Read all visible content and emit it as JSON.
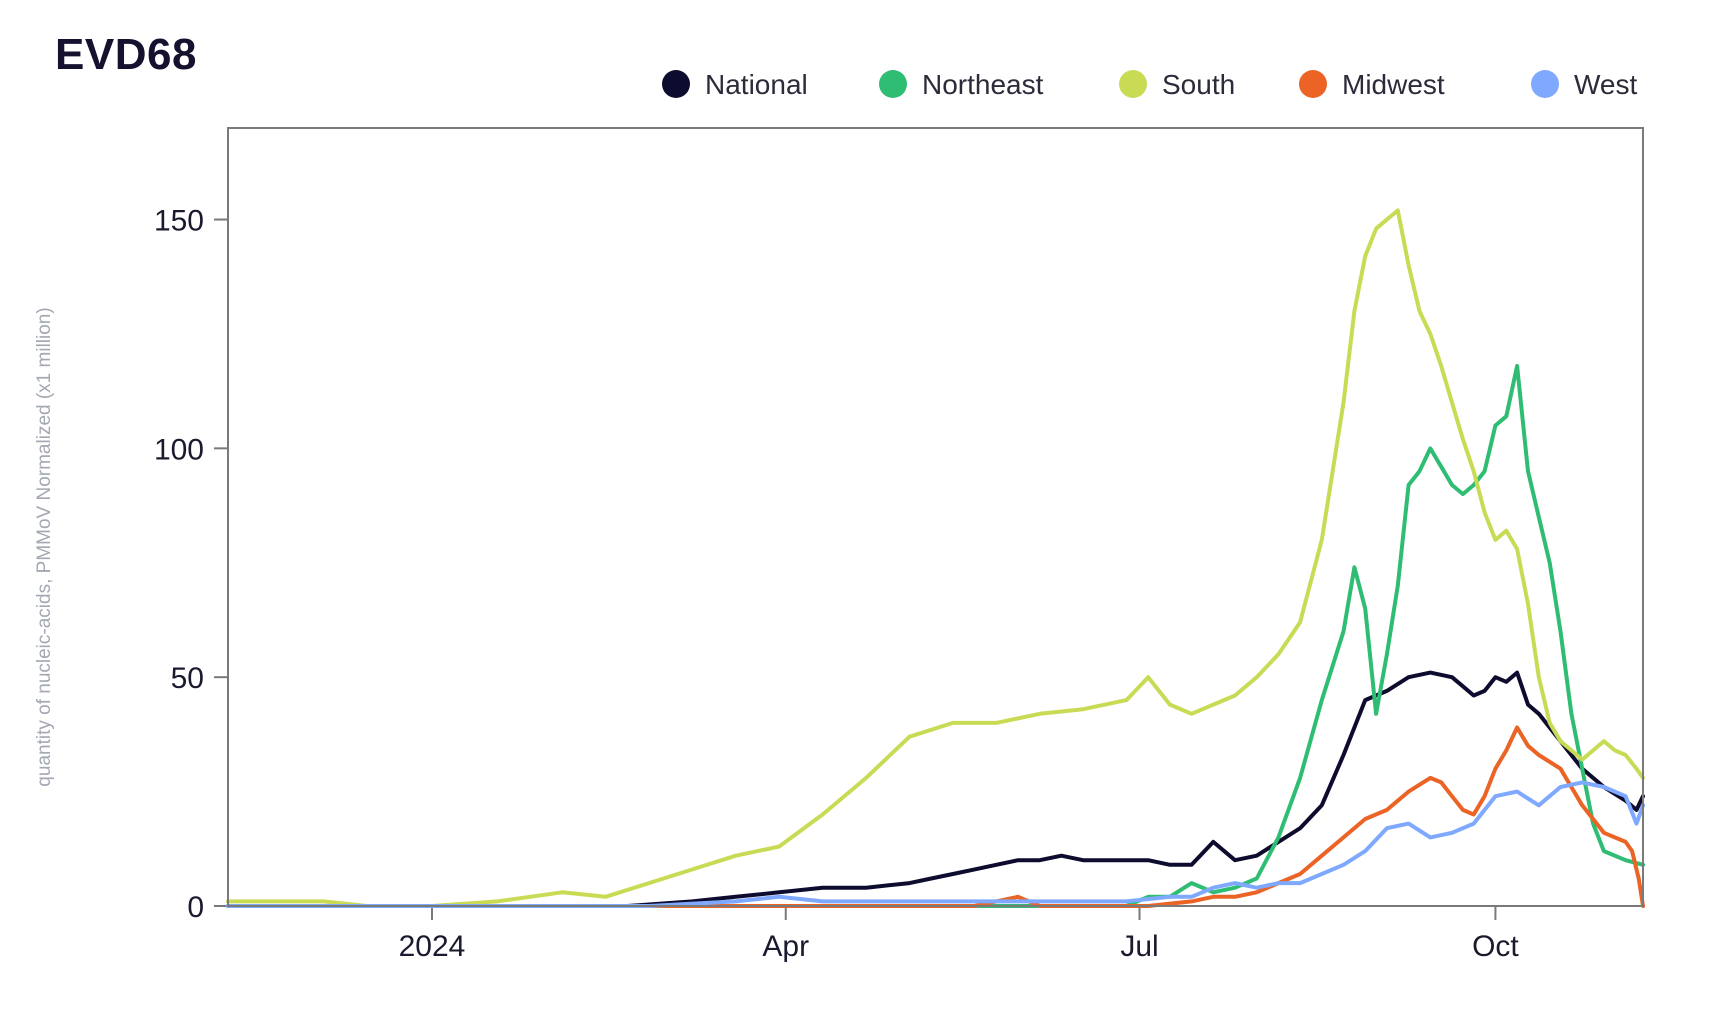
{
  "chart_data": {
    "type": "line",
    "title": "EVD68",
    "xlabel": "",
    "ylabel": "quantity of nucleic-acids, PMMoV Normalized (x1 million)",
    "ylim": [
      0,
      170
    ],
    "yticks": [
      0,
      50,
      100,
      150
    ],
    "x_unit": "weeks since 2024-01-01",
    "xlim": [
      -9.4,
      55.8
    ],
    "xticks": [
      {
        "x": 0,
        "label": "2024"
      },
      {
        "x": 16.3,
        "label": "Apr"
      },
      {
        "x": 32.6,
        "label": "Jul"
      },
      {
        "x": 49.0,
        "label": "Oct"
      }
    ],
    "legend_position": "top-right",
    "series": [
      {
        "name": "National",
        "color": "#0d0b2e",
        "x": [
          9,
          12,
          14,
          16,
          18,
          20,
          22,
          23,
          24,
          25,
          26,
          27,
          28,
          29,
          30,
          31,
          32,
          33,
          34,
          35,
          36,
          37,
          38,
          39,
          40,
          41,
          42,
          43,
          44,
          45,
          46,
          47,
          47.5,
          48,
          48.5,
          49,
          49.5,
          50,
          50.5,
          51,
          52,
          53,
          54,
          55,
          55.5,
          55.8
        ],
        "values": [
          0,
          1,
          2,
          3,
          4,
          4,
          5,
          6,
          7,
          8,
          9,
          10,
          10,
          11,
          10,
          10,
          10,
          10,
          9,
          9,
          14,
          10,
          11,
          14,
          17,
          22,
          33,
          45,
          47,
          50,
          51,
          50,
          48,
          46,
          47,
          50,
          49,
          51,
          44,
          42,
          36,
          30,
          26,
          23,
          21,
          24
        ]
      },
      {
        "name": "Northeast",
        "color": "#2ebd73",
        "x": [
          -9.4,
          20,
          28,
          32,
          33,
          34,
          35,
          36,
          37,
          38,
          39,
          40,
          41,
          42,
          42.5,
          43,
          43.5,
          44,
          44.5,
          45,
          45.5,
          46,
          46.5,
          47,
          47.5,
          48,
          48.5,
          49,
          49.5,
          50,
          50.5,
          51,
          51.5,
          52,
          52.5,
          53,
          53.5,
          54,
          55,
          55.8
        ],
        "values": [
          0,
          0,
          0,
          0,
          2,
          2,
          5,
          3,
          4,
          6,
          15,
          28,
          45,
          60,
          74,
          65,
          42,
          55,
          70,
          92,
          95,
          100,
          96,
          92,
          90,
          92,
          95,
          105,
          107,
          118,
          95,
          85,
          75,
          60,
          42,
          30,
          18,
          12,
          10,
          9
        ]
      },
      {
        "name": "South",
        "color": "#c9db55",
        "x": [
          -9.4,
          -7,
          -5,
          -3,
          0,
          3,
          6,
          8,
          10,
          12,
          14,
          16,
          18,
          20,
          22,
          24,
          26,
          28,
          30,
          32,
          33,
          34,
          35,
          36,
          37,
          38,
          39,
          40,
          41,
          42,
          42.5,
          43,
          43.5,
          44,
          44.5,
          45,
          45.5,
          46,
          46.5,
          47,
          47.5,
          48,
          48.5,
          49,
          49.5,
          50,
          50.5,
          51,
          51.5,
          52,
          52.5,
          53,
          53.5,
          54,
          54.5,
          55,
          55.5,
          55.8
        ],
        "values": [
          1,
          1,
          1,
          0,
          0,
          1,
          3,
          2,
          5,
          8,
          11,
          13,
          20,
          28,
          37,
          40,
          40,
          42,
          43,
          45,
          50,
          44,
          42,
          44,
          46,
          50,
          55,
          62,
          80,
          110,
          130,
          142,
          148,
          150,
          152,
          140,
          130,
          125,
          118,
          110,
          102,
          95,
          86,
          80,
          82,
          78,
          66,
          50,
          40,
          36,
          34,
          32,
          34,
          36,
          34,
          33,
          30,
          28
        ]
      },
      {
        "name": "Midwest",
        "color": "#eb6325",
        "x": [
          -9.4,
          24,
          25,
          26,
          27,
          28,
          30,
          33,
          35,
          36,
          37,
          38,
          39,
          40,
          41,
          42,
          43,
          44,
          45,
          46,
          46.5,
          47,
          47.5,
          48,
          48.5,
          49,
          49.5,
          50,
          50.5,
          51,
          52,
          53,
          54,
          55,
          55.3,
          55.6,
          55.8
        ],
        "values": [
          0,
          0,
          0,
          1,
          2,
          0,
          0,
          0,
          1,
          2,
          2,
          3,
          5,
          7,
          11,
          15,
          19,
          21,
          25,
          28,
          27,
          24,
          21,
          20,
          24,
          30,
          34,
          39,
          35,
          33,
          30,
          22,
          16,
          14,
          12,
          6,
          0
        ]
      },
      {
        "name": "West",
        "color": "#7ea9ff",
        "x": [
          -9.4,
          10,
          14,
          16,
          18,
          20,
          22,
          24,
          26,
          28,
          30,
          32,
          34,
          35,
          36,
          37,
          38,
          39,
          40,
          41,
          42,
          43,
          44,
          45,
          46,
          47,
          48,
          49,
          50,
          51,
          52,
          53,
          54,
          55,
          55.5,
          55.8
        ],
        "values": [
          0,
          0,
          1,
          2,
          1,
          1,
          1,
          1,
          1,
          1,
          1,
          1,
          2,
          2,
          4,
          5,
          4,
          5,
          5,
          7,
          9,
          12,
          17,
          18,
          15,
          16,
          18,
          24,
          25,
          22,
          26,
          27,
          26,
          24,
          18,
          22
        ]
      }
    ]
  }
}
